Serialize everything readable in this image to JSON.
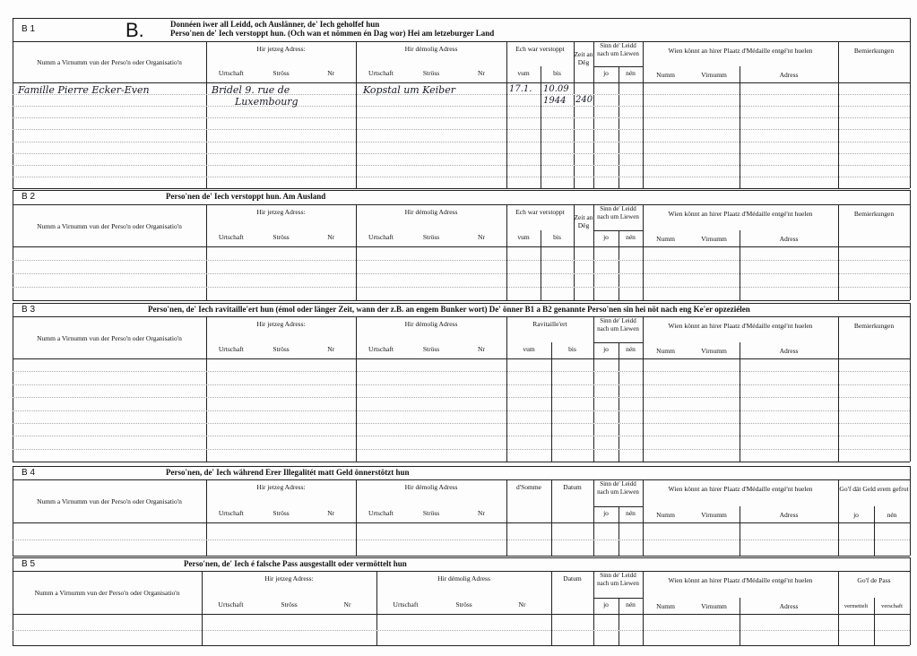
{
  "form_letter": "B.",
  "sections": [
    {
      "id": "B 1",
      "title_lines": [
        "Donnéen iwer all Leidd, och Auslänner, de' Iech geholfef hun",
        "Perso'nen de' Iech verstoppt hun. (Och wan et nömmen én Dag wor)    Hei am letzeburger Land"
      ],
      "columns": {
        "name": "Numm a Virnumm vun der Perso'n oder Organisatio'n",
        "current": "Hir jetzeg Adress:",
        "former": "Hir démolig Adress",
        "period": "Ech war verstoppt",
        "days": "Zeit an Dëg",
        "sinn": "Sinn de' Leidd nach um Liewen",
        "wien": "Wien könnt an hirer Plaatz d'Médaille entgé'nt huelen",
        "remarks": "Bemierkungen"
      },
      "sub": {
        "ort": "Urtschaft",
        "str": "Ströss",
        "nr": "Nr",
        "vum": "vum",
        "bis": "bis",
        "jo": "jo",
        "nen": "nén",
        "numm": "Numm",
        "virnumm": "Virnumm",
        "adress": "Adress"
      },
      "entries": [
        {
          "name": "Famille Pierre Ecker-Even",
          "current": "Bridel 9. rue de",
          "current2": "Luxembourg",
          "former": "Kopstal um Keiber",
          "vum": "17.1.",
          "bis": "10.09",
          "bis2": "1944",
          "days": "240"
        }
      ]
    },
    {
      "id": "B 2",
      "title_lines": [
        "Perso'nen de' Iech verstoppt hun.                    Am Ausland"
      ],
      "columns": {
        "name": "Numm a Virnumm vun der Perso'n oder Organisatio'n",
        "current": "Hir jetzeg Adress:",
        "former": "Hir démolig Adress",
        "period": "Ech war verstoppt",
        "days": "Zeit an Dëg",
        "sinn": "Sinn de' Leidd nach um Liewen",
        "wien": "Wien könnt an hirer Plaatz d'Médaille entgé'nt huelen",
        "remarks": "Bemierkungen"
      },
      "sub": {
        "ort": "Urtschaft",
        "str": "Ströss",
        "nr": "Nr",
        "vum": "vum",
        "bis": "bis",
        "jo": "jo",
        "nen": "nén",
        "numm": "Numm",
        "virnumm": "Virnumm",
        "adress": "Adress"
      }
    },
    {
      "id": "B 3",
      "title_lines": [
        "Perso'nen, de' Iech ravitaille'ert hun (émol oder länger Zeit, wann der z.B. an engem Bunker wort)   De' önner B1 a B2 genannte Perso'nen sin hei nöt nach eng Ke'er opzeziélen"
      ],
      "columns": {
        "name": "Numm a Virnumm vun der Perso'n oder Organisatio'n",
        "current": "Hir jetzeg Adress:",
        "former": "Hir démolig Adress",
        "period": "Ravitaille'ert",
        "sinn": "Sinn de' Leidd nach um Liewen",
        "wien": "Wien könnt an hirer Plaatz d'Médaille entgé'nt huelen",
        "remarks": "Bemierkungen"
      },
      "sub": {
        "ort": "Urtschaft",
        "str": "Ströss",
        "nr": "Nr",
        "vum": "vum",
        "bis": "bis",
        "jo": "jo",
        "nen": "nén",
        "numm": "Numm",
        "virnumm": "Virnumm",
        "adress": "Adress"
      }
    },
    {
      "id": "B 4",
      "title_lines": [
        "Perso'nen, de' Iech während Erer Illegalitét matt Geld önnerstötzt hun"
      ],
      "columns": {
        "name": "Numm a Virnumm vun der Perso'n oder Organisatio'n",
        "current": "Hir jetzeg Adress:",
        "former": "Hir démolig Adress",
        "sum": "d'Somme",
        "date": "Datum",
        "sinn": "Sinn de' Leidd nach um Liewen",
        "wien": "Wien könnt an hirer Plaatz d'Médaille entgé'nt huelen",
        "money": "Go'f dät Geld erem gefrot"
      },
      "sub": {
        "ort": "Urtschaft",
        "str": "Ströss",
        "nr": "Nr",
        "jo": "jo",
        "nen": "nén",
        "numm": "Numm",
        "virnumm": "Virnumm",
        "adress": "Adress"
      }
    },
    {
      "id": "B 5",
      "title_lines": [
        "Perso'nen, de' Iech é falsche Pass ausgestallt oder vermöttelt hun"
      ],
      "columns": {
        "name": "Numm a Virnumm vun der Perso'n oder Organisatio'n",
        "current": "Hir jetzeg Adress:",
        "former": "Hir démolig Adress",
        "date": "Datum",
        "sinn": "Sinn de' Leidd nach um Liewen",
        "wien": "Wien könnt an hirer Plaatz d'Médaille entgé'nt huelen",
        "pass": "Go'f de Pass"
      },
      "sub": {
        "ort": "Urtschaft",
        "str": "Ströss",
        "nr": "Nr",
        "jo": "jo",
        "nen": "nén",
        "numm": "Numm",
        "virnumm": "Virnumm",
        "adress": "Adress",
        "verm": "vermettelt",
        "versch": "verschaft"
      }
    }
  ]
}
